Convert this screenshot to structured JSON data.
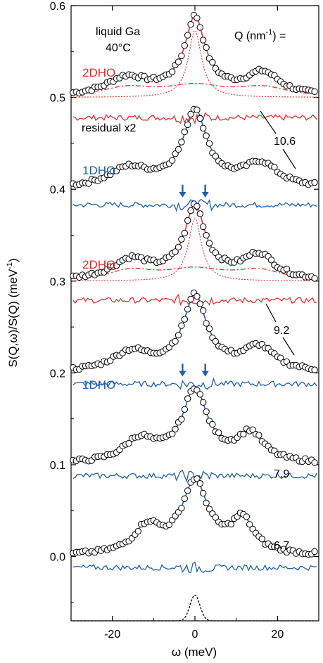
{
  "chart_data": {
    "type": "line",
    "title": "",
    "xlabel": "ω (meV)",
    "ylabel": "S(Q,ω)/S(Q)   (meV",
    "ylabel_sup": "-1",
    "ylabel_close": ")",
    "xlim": [
      -30,
      30
    ],
    "ylim": [
      -0.07,
      0.6
    ],
    "xticks": [
      -20,
      0,
      20
    ],
    "xtick_labels": [
      "-20",
      "0",
      "20"
    ],
    "yticks": [
      0.0,
      0.1,
      0.2,
      0.3,
      0.4,
      0.5,
      0.6
    ],
    "ytick_labels": [
      "0.0",
      "0.1",
      "0.2",
      "0.3",
      "0.4",
      "0.5",
      "0.6"
    ],
    "grid": false,
    "legend": "none",
    "colors": {
      "red": "#e0302e",
      "blue": "#1f5fa8",
      "data": "#000000",
      "model_inner": "#6a3d9a"
    },
    "annotations": {
      "sample": "liquid Ga",
      "temperature": "40°C",
      "q_label": "Q (nm",
      "q_label_sup": "-1",
      "q_label_close": ") =",
      "residual": "residual x2",
      "models": [
        "2DHO",
        "1DHO",
        "2DHO",
        "1DHO"
      ],
      "q_values": [
        "10.6",
        "9.2",
        "7.9",
        "6.7"
      ]
    },
    "series": [
      {
        "q": 10.6,
        "model": "2DHO",
        "color": "red",
        "offset": 0.5,
        "residual_offset": 0.478,
        "peak": 0.073,
        "width": 2.8,
        "side_pos": 16.5,
        "side_amp": 0.024,
        "side_w": 5.0
      },
      {
        "q": 10.6,
        "model": "1DHO",
        "color": "blue",
        "offset": 0.4,
        "residual_offset": 0.383,
        "peak": 0.072,
        "width": 3.2,
        "side_pos": 16.0,
        "side_amp": 0.025,
        "side_w": 5.0,
        "arrows_x": [
          -3,
          2.5
        ]
      },
      {
        "q": 9.2,
        "model": "2DHO",
        "color": "red",
        "offset": 0.3,
        "residual_offset": 0.279,
        "peak": 0.068,
        "width": 2.8,
        "side_pos": 15.5,
        "side_amp": 0.026,
        "side_w": 4.5
      },
      {
        "q": 9.2,
        "model": "1DHO",
        "color": "blue",
        "offset": 0.2,
        "residual_offset": 0.188,
        "peak": 0.07,
        "width": 3.2,
        "side_pos": 15.5,
        "side_amp": 0.025,
        "side_w": 4.5,
        "arrows_x": [
          -3,
          2.5
        ]
      },
      {
        "q": 7.9,
        "model": "1DHO",
        "color": "blue",
        "offset": 0.1,
        "residual_offset": 0.088,
        "peak": 0.068,
        "width": 3.4,
        "side_pos": 13.5,
        "side_amp": 0.03,
        "side_w": 3.8
      },
      {
        "q": 6.7,
        "model": "1DHO",
        "color": "blue",
        "offset": 0.0,
        "residual_offset": -0.012,
        "peak": 0.068,
        "width": 3.6,
        "side_pos": 11.5,
        "side_amp": 0.035,
        "side_w": 3.2
      }
    ],
    "resolution": {
      "center": 0,
      "width": 1.2,
      "peak": 0.028,
      "baseline": -0.07
    }
  }
}
